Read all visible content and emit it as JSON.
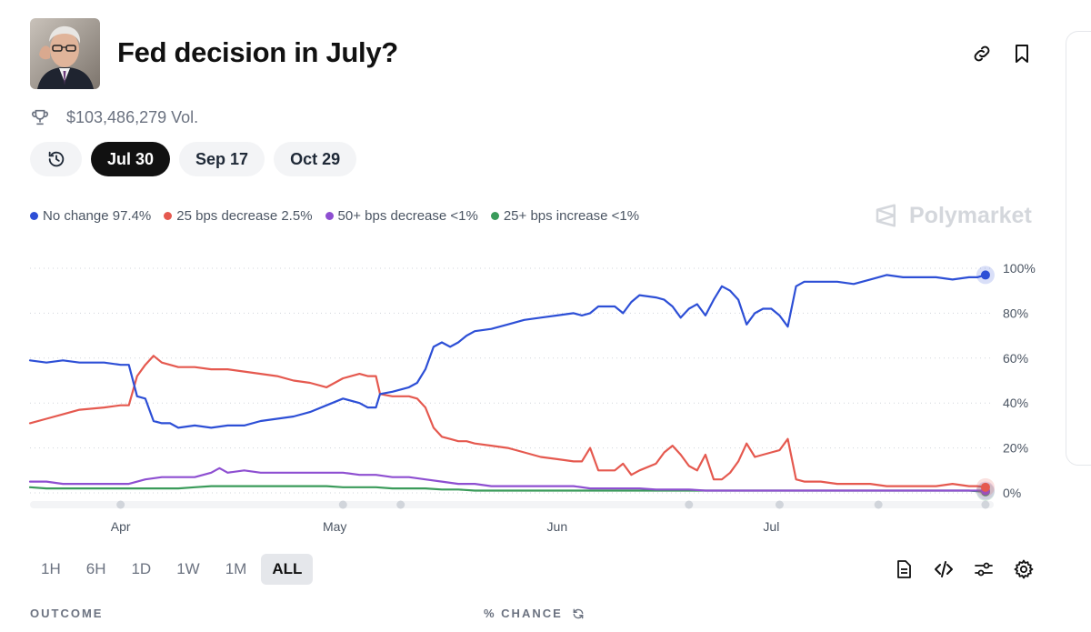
{
  "header": {
    "title": "Fed decision in July?",
    "volume": "$103,486,279 Vol."
  },
  "date_chips": [
    {
      "label": "Jul 30",
      "active": true
    },
    {
      "label": "Sep 17",
      "active": false
    },
    {
      "label": "Oct 29",
      "active": false
    }
  ],
  "legend": [
    {
      "label": "No change 97.4%",
      "color": "#2d4fd6"
    },
    {
      "label": "25 bps decrease 2.5%",
      "color": "#e5594f"
    },
    {
      "label": "50+ bps decrease <1%",
      "color": "#8e4fd1"
    },
    {
      "label": "25+ bps increase <1%",
      "color": "#3a9b5a"
    }
  ],
  "watermark": "Polymarket",
  "time_ranges": [
    {
      "label": "1H",
      "active": false
    },
    {
      "label": "6H",
      "active": false
    },
    {
      "label": "1D",
      "active": false
    },
    {
      "label": "1W",
      "active": false
    },
    {
      "label": "1M",
      "active": false
    },
    {
      "label": "ALL",
      "active": true
    }
  ],
  "table_headers": {
    "outcome": "OUTCOME",
    "chance": "% CHANCE"
  },
  "chart_data": {
    "type": "line",
    "x_unit": "day of year",
    "x_range": [
      84,
      201
    ],
    "xlim": [
      84,
      201
    ],
    "ylim": [
      0,
      100
    ],
    "y_ticks": [
      0,
      20,
      40,
      60,
      80,
      100
    ],
    "y_tick_labels": [
      "0%",
      "20%",
      "40%",
      "60%",
      "80%",
      "100%"
    ],
    "x_ticks": [
      {
        "x": 95,
        "label": "Apr"
      },
      {
        "x": 121,
        "label": "May"
      },
      {
        "x": 148,
        "label": "Jun"
      },
      {
        "x": 174,
        "label": "Jul"
      }
    ],
    "timeline_marker_x": [
      95,
      122,
      129,
      164,
      175,
      187,
      200
    ],
    "grid": true,
    "legend_position": "top-left",
    "series": [
      {
        "name": "No change",
        "color": "#2d4fd6",
        "points": [
          [
            84,
            59
          ],
          [
            86,
            58
          ],
          [
            88,
            59
          ],
          [
            90,
            58
          ],
          [
            93,
            58
          ],
          [
            95,
            57
          ],
          [
            96,
            57
          ],
          [
            97,
            43
          ],
          [
            98,
            42
          ],
          [
            99,
            32
          ],
          [
            100,
            31
          ],
          [
            101,
            31
          ],
          [
            102,
            29
          ],
          [
            104,
            30
          ],
          [
            106,
            29
          ],
          [
            108,
            30
          ],
          [
            110,
            30
          ],
          [
            112,
            32
          ],
          [
            114,
            33
          ],
          [
            116,
            34
          ],
          [
            118,
            36
          ],
          [
            120,
            39
          ],
          [
            122,
            42
          ],
          [
            124,
            40
          ],
          [
            125,
            38
          ],
          [
            126,
            38
          ],
          [
            126.5,
            44
          ],
          [
            128,
            45
          ],
          [
            130,
            47
          ],
          [
            131,
            49
          ],
          [
            132,
            55
          ],
          [
            133,
            65
          ],
          [
            134,
            67
          ],
          [
            135,
            65
          ],
          [
            136,
            67
          ],
          [
            137,
            70
          ],
          [
            138,
            72
          ],
          [
            140,
            73
          ],
          [
            142,
            75
          ],
          [
            144,
            77
          ],
          [
            146,
            78
          ],
          [
            148,
            79
          ],
          [
            150,
            80
          ],
          [
            151,
            79
          ],
          [
            152,
            80
          ],
          [
            153,
            83
          ],
          [
            155,
            83
          ],
          [
            156,
            80
          ],
          [
            157,
            85
          ],
          [
            158,
            88
          ],
          [
            160,
            87
          ],
          [
            161,
            86
          ],
          [
            162,
            83
          ],
          [
            163,
            78
          ],
          [
            164,
            82
          ],
          [
            165,
            84
          ],
          [
            166,
            79
          ],
          [
            167,
            86
          ],
          [
            168,
            92
          ],
          [
            169,
            90
          ],
          [
            170,
            86
          ],
          [
            171,
            75
          ],
          [
            172,
            80
          ],
          [
            173,
            82
          ],
          [
            174,
            82
          ],
          [
            175,
            79
          ],
          [
            176,
            74
          ],
          [
            177,
            92
          ],
          [
            178,
            94
          ],
          [
            180,
            94
          ],
          [
            182,
            94
          ],
          [
            184,
            93
          ],
          [
            186,
            95
          ],
          [
            188,
            97
          ],
          [
            190,
            96
          ],
          [
            192,
            96
          ],
          [
            194,
            96
          ],
          [
            196,
            95
          ],
          [
            198,
            96
          ],
          [
            199,
            96
          ],
          [
            200,
            97
          ]
        ]
      },
      {
        "name": "25 bps decrease",
        "color": "#e5594f",
        "points": [
          [
            84,
            31
          ],
          [
            86,
            33
          ],
          [
            88,
            35
          ],
          [
            90,
            37
          ],
          [
            93,
            38
          ],
          [
            95,
            39
          ],
          [
            96,
            39
          ],
          [
            97,
            52
          ],
          [
            98,
            57
          ],
          [
            99,
            61
          ],
          [
            100,
            58
          ],
          [
            102,
            56
          ],
          [
            104,
            56
          ],
          [
            106,
            55
          ],
          [
            108,
            55
          ],
          [
            110,
            54
          ],
          [
            112,
            53
          ],
          [
            114,
            52
          ],
          [
            116,
            50
          ],
          [
            118,
            49
          ],
          [
            120,
            47
          ],
          [
            122,
            51
          ],
          [
            124,
            53
          ],
          [
            125,
            52
          ],
          [
            126,
            52
          ],
          [
            126.5,
            44
          ],
          [
            128,
            43
          ],
          [
            130,
            43
          ],
          [
            131,
            42
          ],
          [
            132,
            38
          ],
          [
            133,
            29
          ],
          [
            134,
            25
          ],
          [
            135,
            24
          ],
          [
            136,
            23
          ],
          [
            137,
            23
          ],
          [
            138,
            22
          ],
          [
            140,
            21
          ],
          [
            142,
            20
          ],
          [
            144,
            18
          ],
          [
            146,
            16
          ],
          [
            148,
            15
          ],
          [
            150,
            14
          ],
          [
            151,
            14
          ],
          [
            152,
            20
          ],
          [
            153,
            10
          ],
          [
            155,
            10
          ],
          [
            156,
            13
          ],
          [
            157,
            8
          ],
          [
            158,
            10
          ],
          [
            160,
            13
          ],
          [
            161,
            18
          ],
          [
            162,
            21
          ],
          [
            163,
            17
          ],
          [
            164,
            12
          ],
          [
            165,
            10
          ],
          [
            166,
            17
          ],
          [
            167,
            6
          ],
          [
            168,
            6
          ],
          [
            169,
            9
          ],
          [
            170,
            14
          ],
          [
            171,
            22
          ],
          [
            172,
            16
          ],
          [
            173,
            17
          ],
          [
            174,
            18
          ],
          [
            175,
            19
          ],
          [
            176,
            24
          ],
          [
            177,
            6
          ],
          [
            178,
            5
          ],
          [
            180,
            5
          ],
          [
            182,
            4
          ],
          [
            184,
            4
          ],
          [
            186,
            4
          ],
          [
            188,
            3
          ],
          [
            190,
            3
          ],
          [
            192,
            3
          ],
          [
            194,
            3
          ],
          [
            196,
            4
          ],
          [
            198,
            3
          ],
          [
            199,
            3
          ],
          [
            200,
            2.5
          ]
        ]
      },
      {
        "name": "50+ bps decrease",
        "color": "#8e4fd1",
        "points": [
          [
            84,
            5
          ],
          [
            86,
            5
          ],
          [
            88,
            4
          ],
          [
            90,
            4
          ],
          [
            93,
            4
          ],
          [
            95,
            4
          ],
          [
            96,
            4
          ],
          [
            98,
            6
          ],
          [
            100,
            7
          ],
          [
            102,
            7
          ],
          [
            104,
            7
          ],
          [
            106,
            9
          ],
          [
            107,
            11
          ],
          [
            108,
            9
          ],
          [
            110,
            10
          ],
          [
            112,
            9
          ],
          [
            114,
            9
          ],
          [
            116,
            9
          ],
          [
            118,
            9
          ],
          [
            120,
            9
          ],
          [
            122,
            9
          ],
          [
            124,
            8
          ],
          [
            126,
            8
          ],
          [
            128,
            7
          ],
          [
            130,
            7
          ],
          [
            132,
            6
          ],
          [
            134,
            5
          ],
          [
            136,
            4
          ],
          [
            138,
            4
          ],
          [
            140,
            3
          ],
          [
            142,
            3
          ],
          [
            144,
            3
          ],
          [
            146,
            3
          ],
          [
            148,
            3
          ],
          [
            150,
            3
          ],
          [
            152,
            2
          ],
          [
            154,
            2
          ],
          [
            156,
            2
          ],
          [
            158,
            2
          ],
          [
            160,
            1.5
          ],
          [
            162,
            1.5
          ],
          [
            164,
            1.5
          ],
          [
            166,
            1
          ],
          [
            168,
            1
          ],
          [
            170,
            1
          ],
          [
            172,
            1
          ],
          [
            174,
            1
          ],
          [
            176,
            1
          ],
          [
            178,
            1
          ],
          [
            180,
            1
          ],
          [
            184,
            1
          ],
          [
            188,
            1
          ],
          [
            192,
            1
          ],
          [
            196,
            1
          ],
          [
            200,
            1
          ]
        ]
      },
      {
        "name": "25+ bps increase",
        "color": "#3a9b5a",
        "points": [
          [
            84,
            2.5
          ],
          [
            86,
            2
          ],
          [
            88,
            2
          ],
          [
            90,
            2
          ],
          [
            93,
            2
          ],
          [
            95,
            2
          ],
          [
            96,
            2
          ],
          [
            98,
            2
          ],
          [
            100,
            2
          ],
          [
            102,
            2
          ],
          [
            104,
            2.5
          ],
          [
            106,
            3
          ],
          [
            108,
            3
          ],
          [
            110,
            3
          ],
          [
            112,
            3
          ],
          [
            114,
            3
          ],
          [
            116,
            3
          ],
          [
            118,
            3
          ],
          [
            120,
            3
          ],
          [
            122,
            2.5
          ],
          [
            124,
            2.5
          ],
          [
            126,
            2.5
          ],
          [
            128,
            2
          ],
          [
            130,
            2
          ],
          [
            132,
            2
          ],
          [
            134,
            1.5
          ],
          [
            136,
            1.5
          ],
          [
            138,
            1
          ],
          [
            140,
            1
          ],
          [
            142,
            1
          ],
          [
            144,
            1
          ],
          [
            146,
            1
          ],
          [
            148,
            1
          ],
          [
            150,
            1
          ],
          [
            154,
            1
          ],
          [
            158,
            1
          ],
          [
            162,
            1
          ],
          [
            166,
            1
          ],
          [
            170,
            1
          ],
          [
            174,
            1
          ],
          [
            178,
            1
          ],
          [
            182,
            1
          ],
          [
            186,
            1
          ],
          [
            190,
            1
          ],
          [
            194,
            1
          ],
          [
            198,
            1
          ],
          [
            200,
            0.5
          ]
        ]
      }
    ]
  }
}
